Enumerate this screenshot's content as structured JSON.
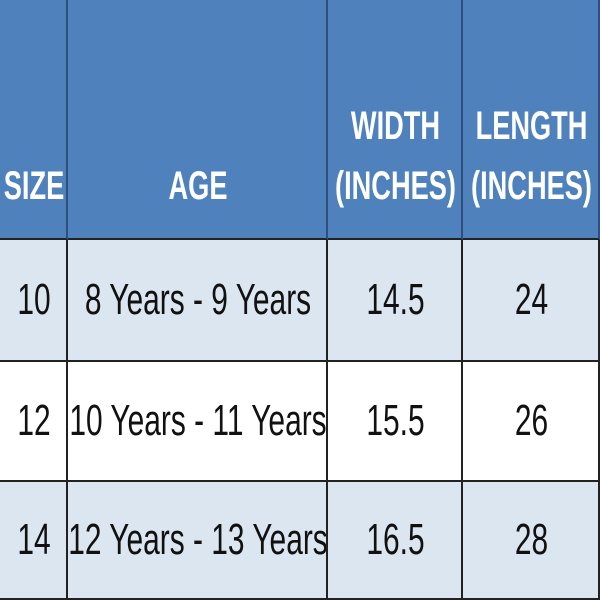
{
  "table": {
    "header": [
      "SIZE",
      "AGE",
      "WIDTH (INCHES)",
      "LENGTH (INCHES)"
    ],
    "rows": [
      [
        10,
        "8 Years - 9 Years",
        14.5,
        24
      ],
      [
        12,
        "10 Years - 11 Years",
        15.5,
        26
      ],
      [
        14,
        "12 Years - 13 Years",
        16.5,
        28
      ]
    ]
  }
}
